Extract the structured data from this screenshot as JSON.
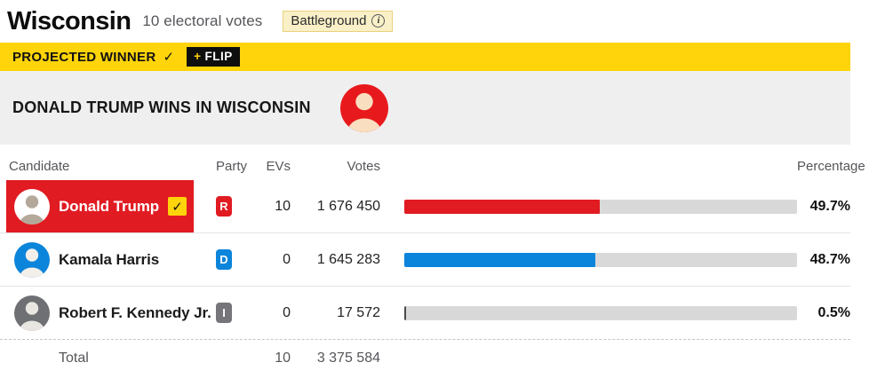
{
  "colors": {
    "accent_yellow": "#FFD40A",
    "republican_red": "#E11B22",
    "democrat_blue": "#0B84DB",
    "independent_gray": "#76767A",
    "bar_track": "#D9D9D9",
    "banner_gray": "#EFEFEF",
    "muted_text": "#55565A"
  },
  "header": {
    "title": "Wisconsin",
    "subtitle": "10 electoral votes",
    "battleground_label": "Battleground",
    "info_glyph": "i"
  },
  "projection": {
    "label": "PROJECTED WINNER",
    "check": "✓",
    "flip_plus": "+",
    "flip_label": "FLIP",
    "headline": "DONALD TRUMP WINS IN WISCONSIN",
    "winner_avatar_bg": "#E8191C",
    "winner_avatar_fg": "#F9DFC0"
  },
  "table": {
    "headers": {
      "candidate": "Candidate",
      "party": "Party",
      "evs": "EVs",
      "votes": "Votes",
      "percentage": "Percentage"
    },
    "rows": [
      {
        "candidate": "Donald Trump",
        "party": "R",
        "party_color": "#E11B22",
        "evs": "10",
        "votes": "1 676 450",
        "pct": 49.7,
        "pct_label": "49.7%",
        "winner": true,
        "winner_check": "✓",
        "bar_color": "#E11B22",
        "avatar_bg": "#FFFFFF",
        "avatar_fg": "#B3A89A"
      },
      {
        "candidate": "Kamala Harris",
        "party": "D",
        "party_color": "#0B84DB",
        "evs": "0",
        "votes": "1 645 283",
        "pct": 48.7,
        "pct_label": "48.7%",
        "winner": false,
        "bar_color": "#0B84DB",
        "avatar_bg": "#0B84DB",
        "avatar_fg": "#F2EFEA"
      },
      {
        "candidate": "Robert F. Kennedy Jr.",
        "party": "I",
        "party_color": "#76767A",
        "evs": "0",
        "votes": "17 572",
        "pct": 0.5,
        "pct_label": "0.5%",
        "winner": false,
        "bar_color": "#4A4A4E",
        "avatar_bg": "#6E7073",
        "avatar_fg": "#E9E6E1"
      }
    ],
    "total": {
      "label": "Total",
      "evs": "10",
      "votes": "3 375 584"
    }
  },
  "chart_data": {
    "type": "bar",
    "orientation": "horizontal",
    "title": "Wisconsin — 10 electoral votes (Battleground)",
    "categories": [
      "Donald Trump",
      "Kamala Harris",
      "Robert F. Kennedy Jr."
    ],
    "series": [
      {
        "name": "Votes",
        "values": [
          1676450,
          1645283,
          17572
        ]
      },
      {
        "name": "Percentage",
        "values": [
          49.7,
          48.7,
          0.5
        ]
      },
      {
        "name": "Electoral votes",
        "values": [
          10,
          0,
          0
        ]
      }
    ],
    "parties": [
      "R",
      "D",
      "I"
    ],
    "bar_colors": [
      "#E11B22",
      "#0B84DB",
      "#4A4A4E"
    ],
    "xlim": [
      0,
      100
    ],
    "legend_position": "none",
    "grid": false,
    "totals": {
      "electoral_votes": 10,
      "votes": 3375584
    },
    "annotations": [
      "PROJECTED WINNER ✓",
      "+ FLIP",
      "DONALD TRUMP WINS IN WISCONSIN",
      "49.7%",
      "48.7%",
      "0.5%"
    ]
  }
}
